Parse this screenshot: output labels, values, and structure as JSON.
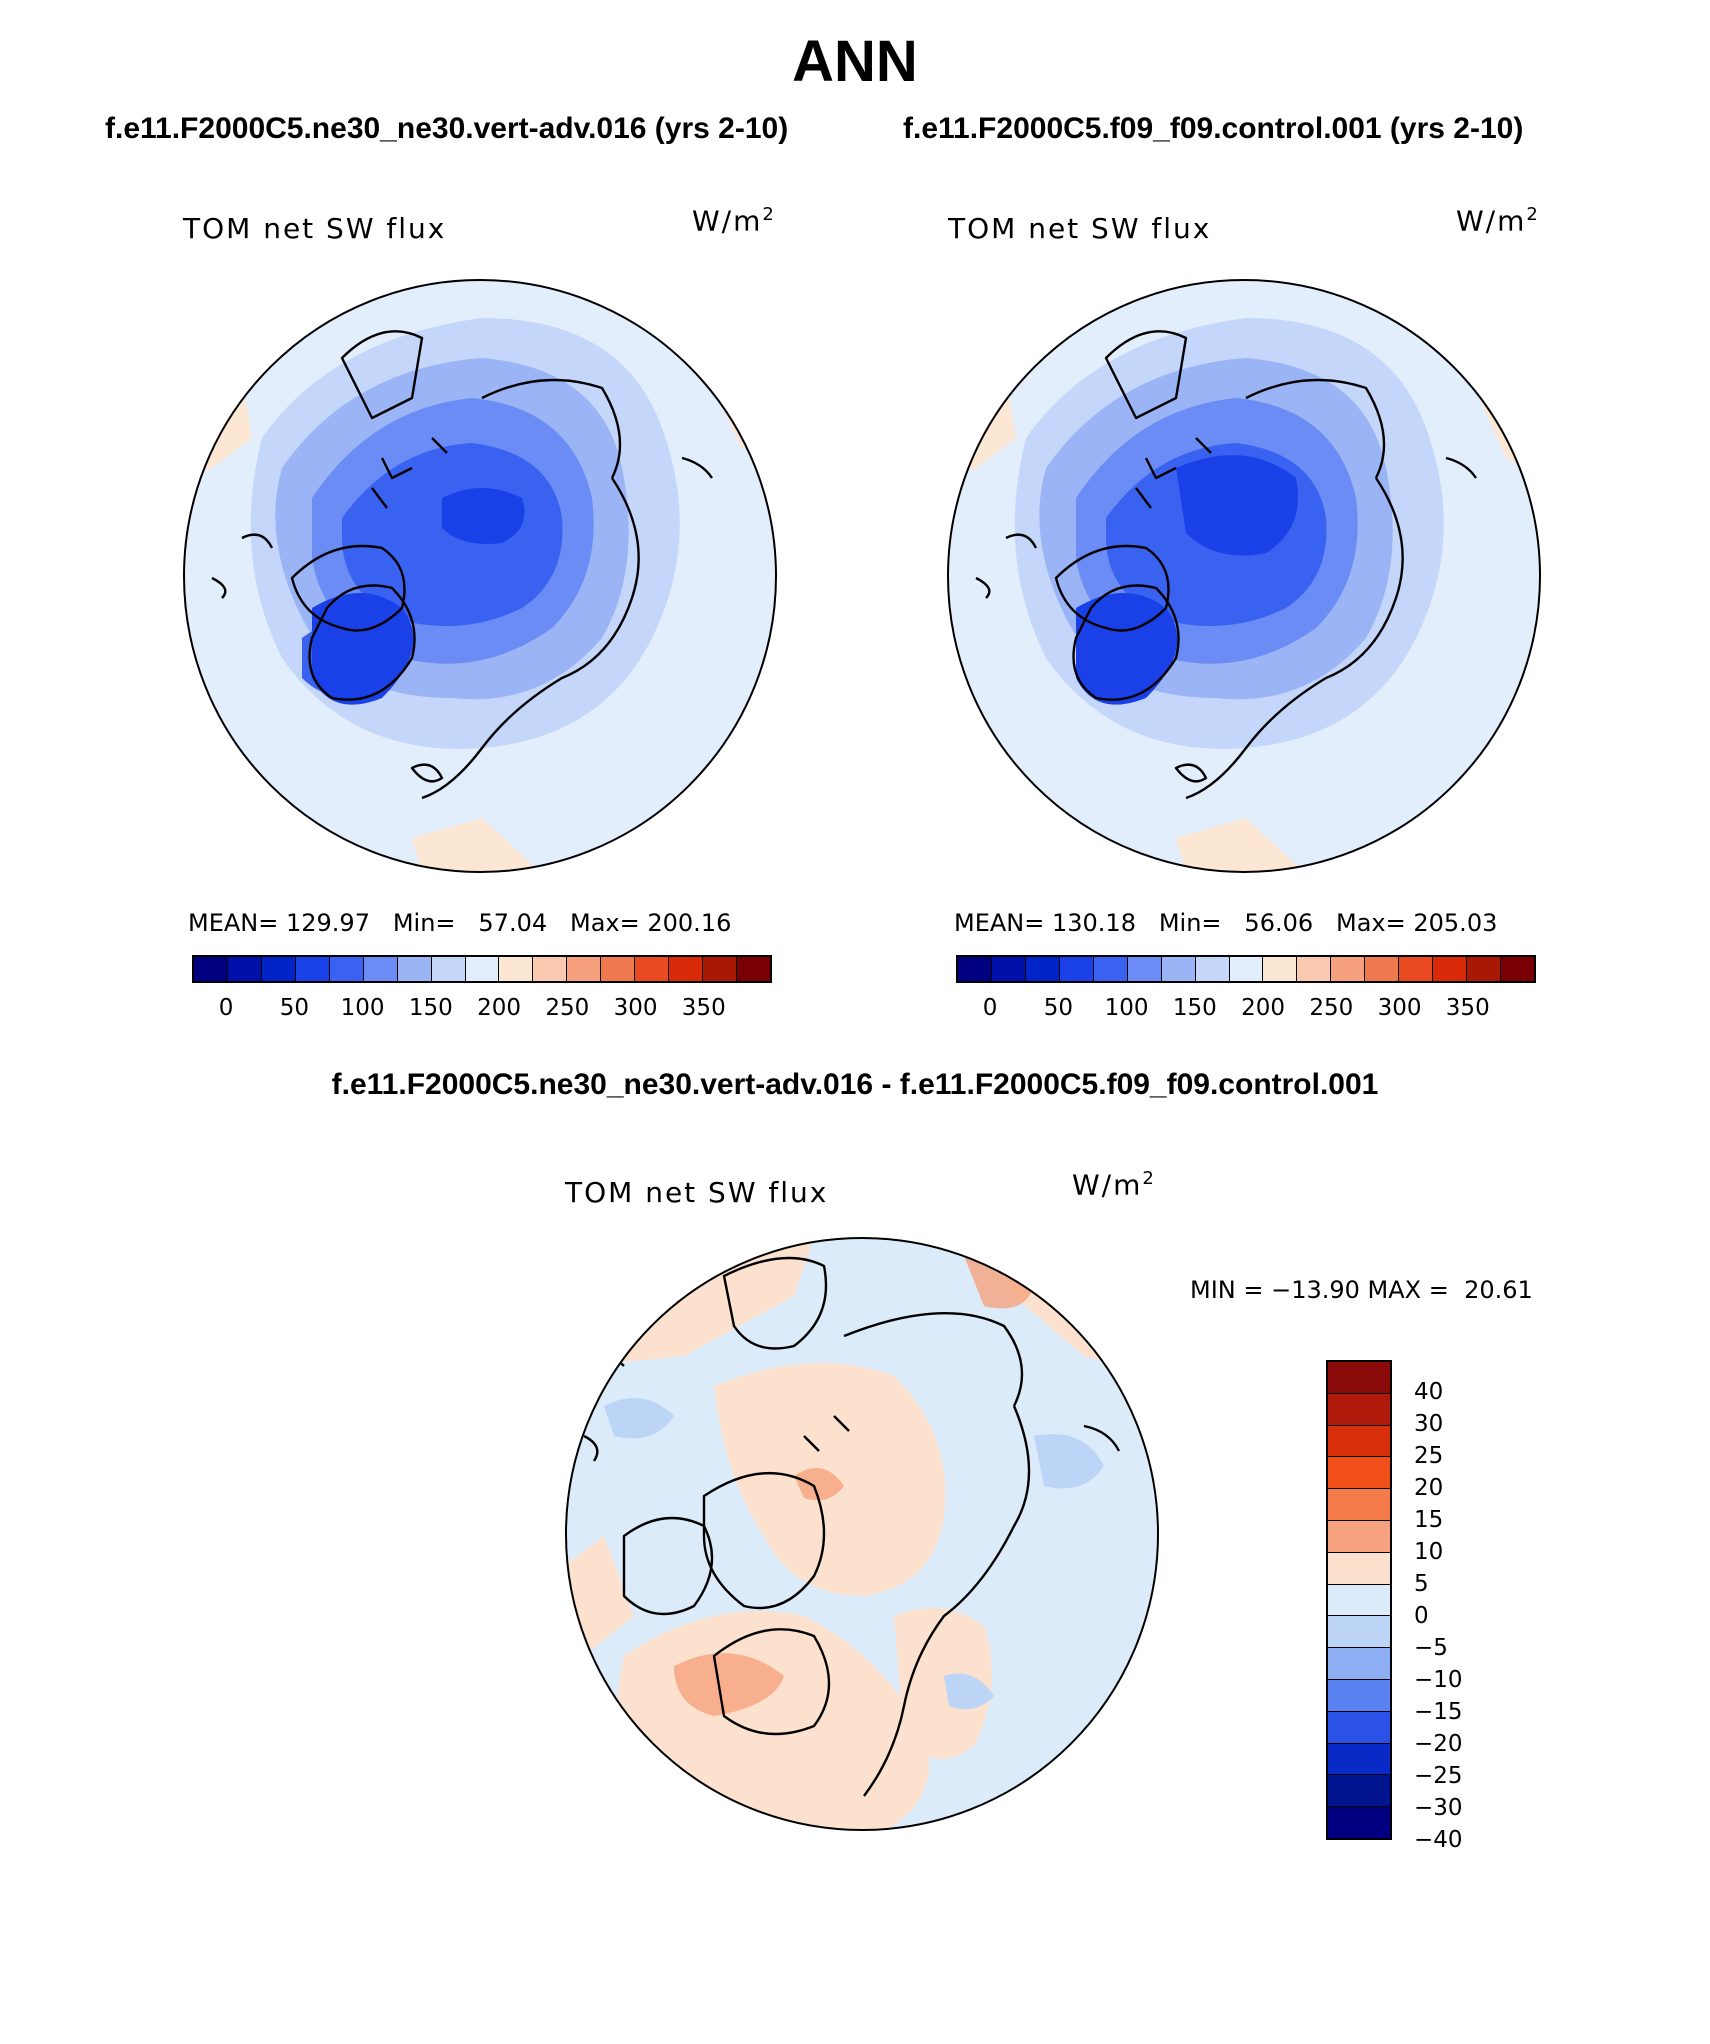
{
  "figure": {
    "title": "ANN",
    "case_left_title": "f.e11.F2000C5.ne30_ne30.vert-adv.016 (yrs 2-10)",
    "case_right_title": "f.e11.F2000C5.f09_f09.control.001 (yrs 2-10)",
    "diff_title": "f.e11.F2000C5.ne30_ne30.vert-adv.016 - f.e11.F2000C5.f09_f09.control.001"
  },
  "panels": {
    "left": {
      "variable": "TOM net SW flux",
      "unit_base": "W/m",
      "unit_exp": "2",
      "stats": "MEAN= 129.97   Min=   57.04   Max= 200.16"
    },
    "right": {
      "variable": "TOM net SW flux",
      "unit_base": "W/m",
      "unit_exp": "2",
      "stats": "MEAN= 130.18   Min=   56.06   Max= 205.03"
    },
    "diff": {
      "variable": "TOM net SW flux",
      "unit_base": "W/m",
      "unit_exp": "2",
      "stats": "MIN = −13.90 MAX =  20.61"
    }
  },
  "colorbars": {
    "model": {
      "colors": [
        "#000080",
        "#0010A8",
        "#0024C8",
        "#1A40E8",
        "#3A62F0",
        "#6A8CF4",
        "#9AB4F6",
        "#C4D6FA",
        "#E2EEFC",
        "#FCE6D4",
        "#FAC8AE",
        "#F6A07E",
        "#F07A50",
        "#EA4A22",
        "#D82A08",
        "#A81804",
        "#780004"
      ],
      "labels": [
        "0",
        "50",
        "100",
        "150",
        "200",
        "250",
        "300",
        "350"
      ]
    },
    "diff": {
      "colors": [
        "#8B0A0A",
        "#B01A0A",
        "#D8300A",
        "#F2501A",
        "#F47A4A",
        "#F6A27E",
        "#FCE2CE",
        "#DCEBFA",
        "#BCD4F6",
        "#8EAEF4",
        "#5A82F0",
        "#2A52E6",
        "#0A2AC8",
        "#001490",
        "#000080"
      ],
      "labels": [
        "40",
        "30",
        "25",
        "20",
        "15",
        "10",
        "5",
        "0",
        "−5",
        "−10",
        "−15",
        "−20",
        "−25",
        "−30",
        "−40"
      ]
    }
  }
}
